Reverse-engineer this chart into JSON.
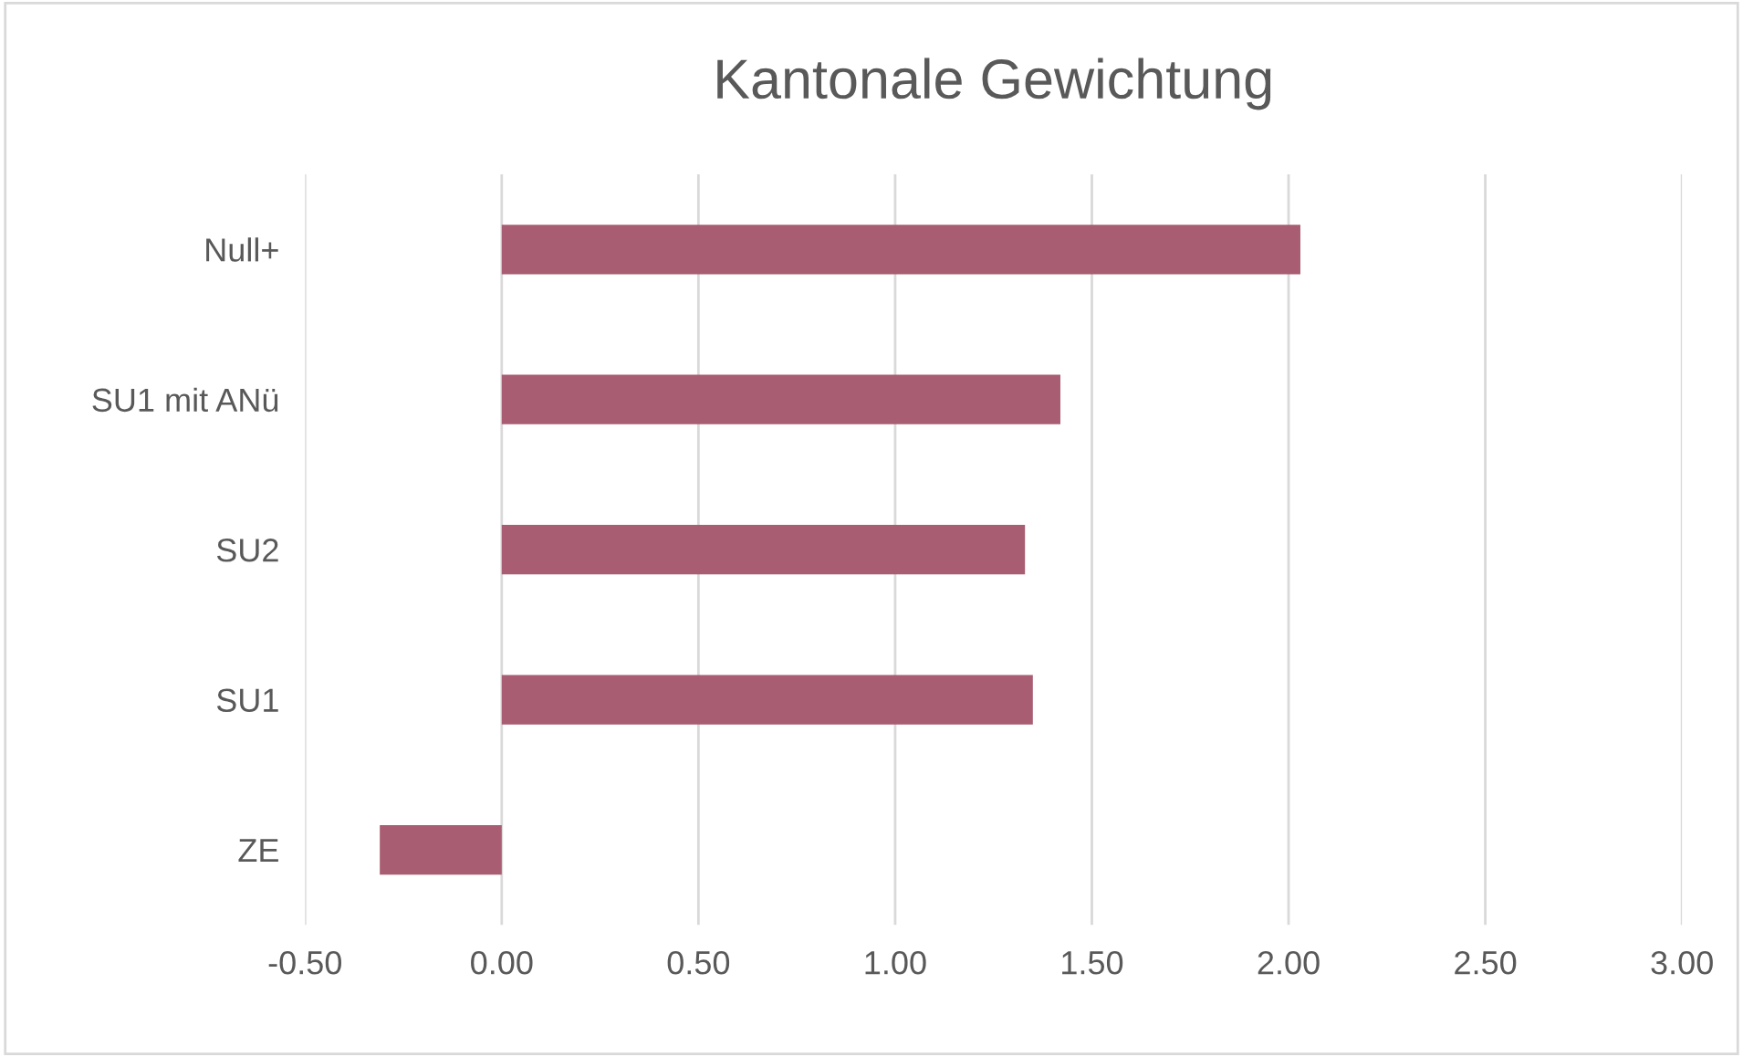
{
  "chart_data": {
    "type": "bar",
    "orientation": "horizontal",
    "title": "Kantonale Gewichtung",
    "categories": [
      "Null+",
      "SU1 mit ANü",
      "SU2",
      "SU1",
      "ZE"
    ],
    "values": [
      2.03,
      1.42,
      1.33,
      1.35,
      -0.31
    ],
    "color": "#a85d72",
    "xlim": [
      -0.5,
      3.0
    ],
    "xticks": [
      {
        "value": -0.5,
        "label": "-0.50"
      },
      {
        "value": 0,
        "label": "0.00"
      },
      {
        "value": 0.5,
        "label": "0.50"
      },
      {
        "value": 1.0,
        "label": "1.00"
      },
      {
        "value": 1.5,
        "label": "1.50"
      },
      {
        "value": 2.0,
        "label": "2.00"
      },
      {
        "value": 2.5,
        "label": "2.50"
      },
      {
        "value": 3.0,
        "label": "3.00"
      }
    ],
    "grid": "x"
  }
}
